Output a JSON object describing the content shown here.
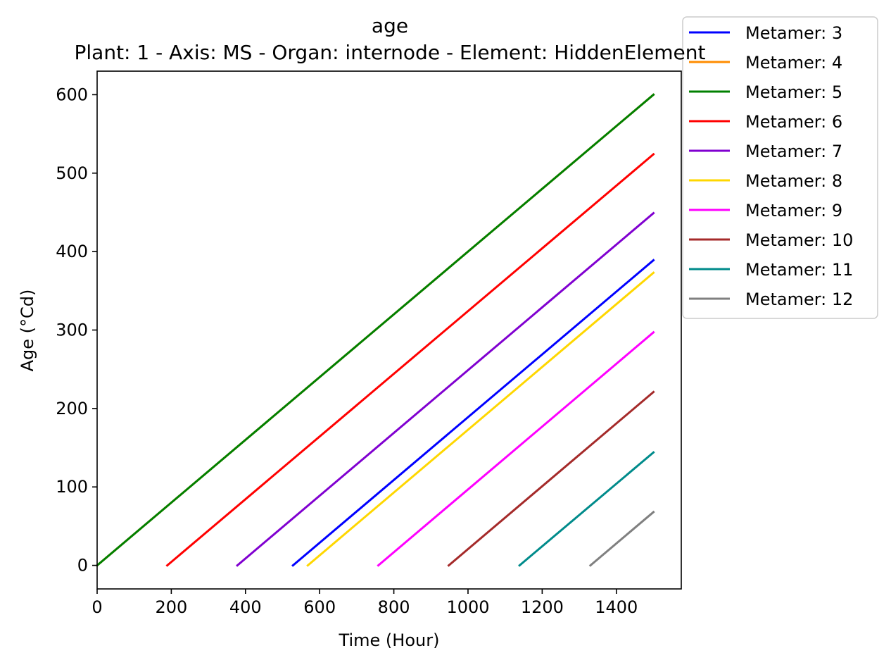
{
  "chart_data": {
    "type": "line",
    "title": "age",
    "subtitle": "Plant: 1 - Axis: MS - Organ: internode - Element: HiddenElement",
    "xlabel": "Time (Hour)",
    "ylabel": "Age (°Cd)",
    "xlim": [
      0,
      1575
    ],
    "ylim": [
      -30,
      630
    ],
    "xticks": [
      0,
      200,
      400,
      600,
      800,
      1000,
      1200,
      1400
    ],
    "yticks": [
      0,
      100,
      200,
      300,
      400,
      500,
      600
    ],
    "grid": false,
    "legend_position": "outside-top-right",
    "series": [
      {
        "name": "Metamer: 3",
        "color": "#0000ff",
        "x": [
          528,
          1500
        ],
        "y": [
          0,
          389
        ]
      },
      {
        "name": "Metamer: 4",
        "color": "#ff8c00",
        "x": [
          0,
          1500
        ],
        "y": [
          0,
          600
        ]
      },
      {
        "name": "Metamer: 5",
        "color": "#008000",
        "x": [
          0,
          1500
        ],
        "y": [
          0,
          600
        ]
      },
      {
        "name": "Metamer: 6",
        "color": "#ff0000",
        "x": [
          189,
          1500
        ],
        "y": [
          0,
          524
        ]
      },
      {
        "name": "Metamer: 7",
        "color": "#8000d0",
        "x": [
          378,
          1500
        ],
        "y": [
          0,
          449
        ]
      },
      {
        "name": "Metamer: 8",
        "color": "#ffd700",
        "x": [
          568,
          1500
        ],
        "y": [
          0,
          373
        ]
      },
      {
        "name": "Metamer: 9",
        "color": "#ff00ff",
        "x": [
          758,
          1500
        ],
        "y": [
          0,
          297
        ]
      },
      {
        "name": "Metamer: 10",
        "color": "#a52a2a",
        "x": [
          948,
          1500
        ],
        "y": [
          0,
          221
        ]
      },
      {
        "name": "Metamer: 11",
        "color": "#008b8b",
        "x": [
          1139,
          1500
        ],
        "y": [
          0,
          144
        ]
      },
      {
        "name": "Metamer: 12",
        "color": "#808080",
        "x": [
          1330,
          1500
        ],
        "y": [
          0,
          68
        ]
      }
    ]
  }
}
